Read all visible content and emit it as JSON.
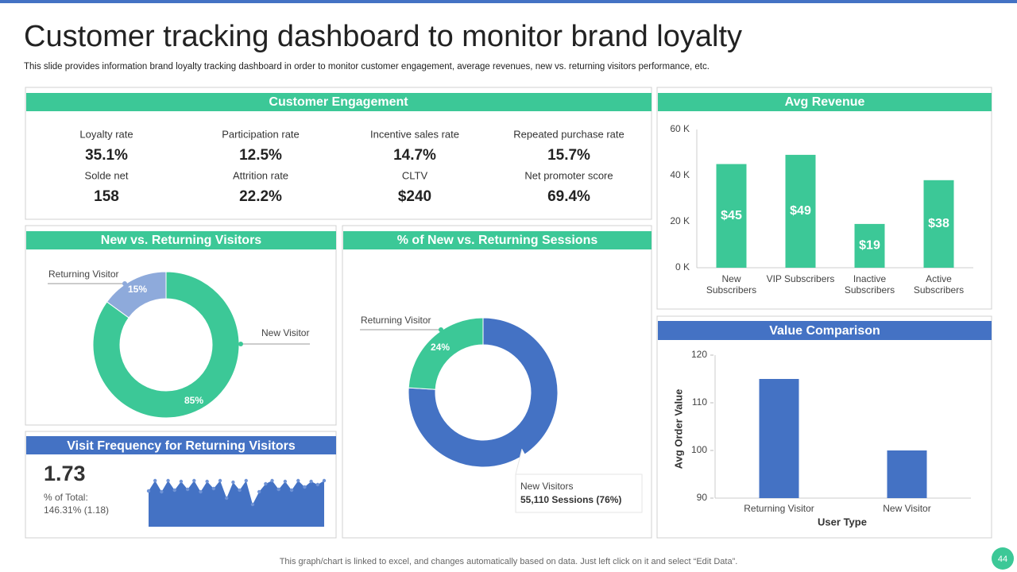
{
  "header": {
    "title": "Customer tracking dashboard to monitor brand loyalty",
    "subtitle": "This slide provides information brand loyalty tracking dashboard in order to monitor customer engagement, average revenues, new vs. returning visitors performance, etc."
  },
  "engagement": {
    "title": "Customer Engagement",
    "metrics": [
      {
        "label": "Loyalty rate",
        "value": "35.1%"
      },
      {
        "label": "Participation rate",
        "value": "12.5%"
      },
      {
        "label": "Incentive  sales rate",
        "value": "14.7%"
      },
      {
        "label": "Repeated  purchase rate",
        "value": "15.7%"
      },
      {
        "label": "Solde net",
        "value": "158"
      },
      {
        "label": "Attrition rate",
        "value": "22.2%"
      },
      {
        "label": "CLTV",
        "value": "$240"
      },
      {
        "label": "Net promoter  score",
        "value": "69.4%"
      }
    ]
  },
  "chart_data": [
    {
      "type": "donut",
      "title": "New vs. Returning Visitors",
      "categories": [
        "New Visitor",
        "Returning Visitor"
      ],
      "values": [
        85,
        15
      ],
      "value_labels": [
        "85%",
        "15%"
      ],
      "colors": [
        "#3cc897",
        "#8eaadb"
      ]
    },
    {
      "type": "donut",
      "title": "% of New vs. Returning Sessions",
      "categories": [
        "New Visitors",
        "Returning Visitor"
      ],
      "values": [
        76,
        24
      ],
      "value_labels": [
        null,
        "24%"
      ],
      "callout": "55,110  Sessions  (76%)",
      "colors": [
        "#4472c4",
        "#3cc897"
      ]
    },
    {
      "type": "area",
      "title": "Visit Frequency for Returning Visitors",
      "kpi": "1.73",
      "kpi_label": "% of Total:",
      "kpi_detail": "146.31% (1.18)",
      "color": "#4472c4",
      "values": [
        45,
        58,
        44,
        58,
        46,
        57,
        47,
        58,
        44,
        57,
        48,
        58,
        36,
        56,
        46,
        58,
        28,
        44,
        54,
        58,
        47,
        57,
        46,
        58,
        50,
        57,
        53,
        58
      ]
    },
    {
      "type": "bar",
      "title": "Avg Revenue",
      "categories": [
        "New Subscribers",
        "VIP Subscribers",
        "Inactive Subscribers",
        "Active Subscribers"
      ],
      "values": [
        45,
        49,
        19,
        38
      ],
      "value_labels": [
        "$45",
        "$49",
        "$19",
        "$38"
      ],
      "ylim": [
        0,
        60
      ],
      "yticks": [
        {
          "value": 0,
          "label": "0 K"
        },
        {
          "value": 20,
          "label": "20 K"
        },
        {
          "value": 40,
          "label": "40 K"
        },
        {
          "value": 60,
          "label": "60 K"
        }
      ],
      "color": "#3cc897"
    },
    {
      "type": "bar",
      "title": "Value Comparison",
      "categories": [
        "Returning Visitor",
        "New Visitor"
      ],
      "values": [
        115,
        100
      ],
      "ylim": [
        90,
        120
      ],
      "yticks": [
        90,
        100,
        110,
        120
      ],
      "xlabel": "User Type",
      "ylabel": "Avg Order Value",
      "color": "#4472c4"
    }
  ],
  "footer": {
    "note": "This graph/chart is linked to excel,  and changes automatically based on data. Just left click on it and select “Edit Data”.",
    "page": "44"
  }
}
